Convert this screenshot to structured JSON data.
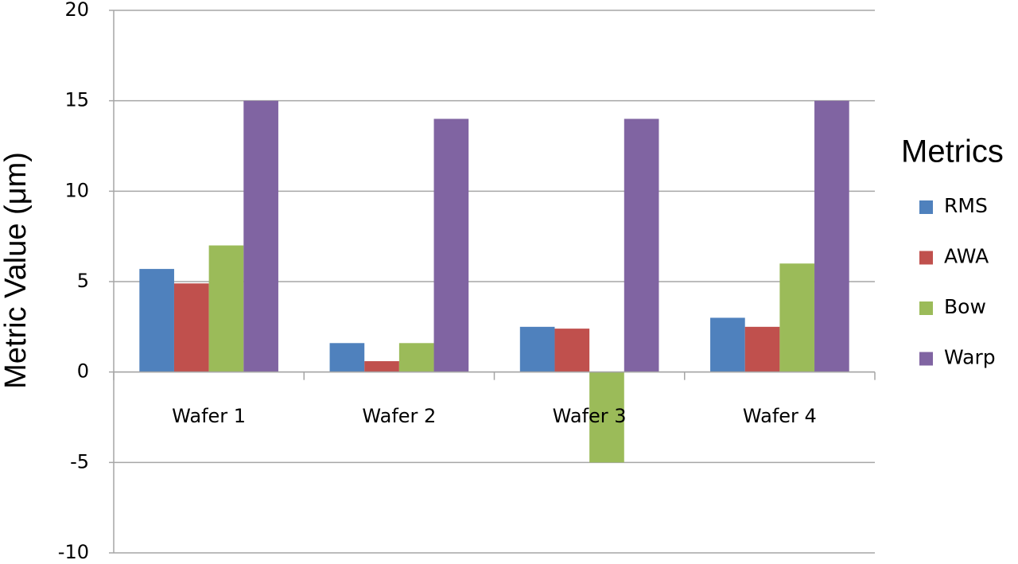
{
  "chart_data": {
    "type": "bar",
    "ylabel": "Metric Value (μm)",
    "legend_title": "Metrics",
    "legend": "right",
    "grid": true,
    "categories": [
      "Wafer 1",
      "Wafer 2",
      "Wafer 3",
      "Wafer 4"
    ],
    "series": [
      {
        "name": "RMS",
        "color": "#4f81bd",
        "values": [
          5.7,
          1.6,
          2.5,
          3.0
        ]
      },
      {
        "name": "AWA",
        "color": "#c0504d",
        "values": [
          4.9,
          0.6,
          2.4,
          2.5
        ]
      },
      {
        "name": "Bow",
        "color": "#9bbb59",
        "values": [
          7.0,
          1.6,
          -5,
          6.0
        ]
      },
      {
        "name": "Warp",
        "color": "#8064a2",
        "values": [
          15,
          14,
          14,
          15
        ]
      }
    ],
    "ylim": [
      -10,
      20
    ],
    "yticks": [
      -10,
      -5,
      0,
      5,
      10,
      15,
      20
    ]
  }
}
